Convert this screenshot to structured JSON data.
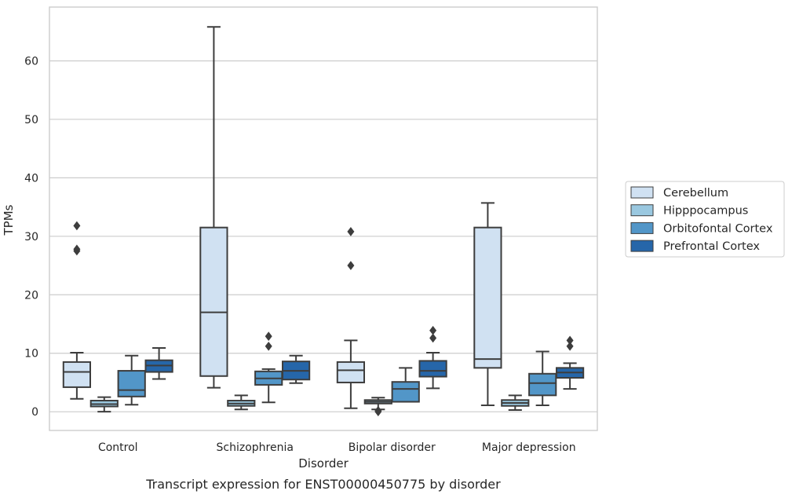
{
  "chart_data": {
    "type": "box",
    "title": "",
    "caption": "Transcript expression for ENST00000450775 by disorder",
    "xlabel": "Disorder",
    "ylabel": "TPMs",
    "ylim": [
      -3.2,
      69.2
    ],
    "yticks": [
      0,
      10,
      20,
      30,
      40,
      50,
      60
    ],
    "grid": "horizontal",
    "legend_position": "right",
    "categories": [
      "Control",
      "Schizophrenia",
      "Bipolar disorder",
      "Major depression"
    ],
    "series": [
      {
        "name": "Cerebellum",
        "color": "#d0e1f2",
        "boxes": [
          {
            "whislo": 2.2,
            "q1": 4.2,
            "med": 6.8,
            "q3": 8.5,
            "whishi": 10.1,
            "fliers": [
              27.5,
              27.8,
              31.8
            ]
          },
          {
            "whislo": 4.1,
            "q1": 6.1,
            "med": 17.0,
            "q3": 31.5,
            "whishi": 65.8,
            "fliers": []
          },
          {
            "whislo": 0.6,
            "q1": 5.0,
            "med": 7.1,
            "q3": 8.5,
            "whishi": 12.2,
            "fliers": [
              25.0,
              30.8
            ]
          },
          {
            "whislo": 1.1,
            "q1": 7.5,
            "med": 9.0,
            "q3": 31.5,
            "whishi": 35.7,
            "fliers": []
          }
        ]
      },
      {
        "name": "Hipppocampus",
        "color": "#9ac8e0",
        "boxes": [
          {
            "whislo": 0.0,
            "q1": 0.9,
            "med": 1.3,
            "q3": 1.9,
            "whishi": 2.5,
            "fliers": []
          },
          {
            "whislo": 0.4,
            "q1": 1.0,
            "med": 1.4,
            "q3": 1.9,
            "whishi": 2.8,
            "fliers": []
          },
          {
            "whislo": 0.4,
            "q1": 1.4,
            "med": 1.7,
            "q3": 2.0,
            "whishi": 2.4,
            "fliers": [
              0.0,
              0.2
            ]
          },
          {
            "whislo": 0.3,
            "q1": 1.0,
            "med": 1.5,
            "q3": 2.0,
            "whishi": 2.8,
            "fliers": []
          }
        ]
      },
      {
        "name": "Orbitofontal Cortex",
        "color": "#5296c8",
        "boxes": [
          {
            "whislo": 1.2,
            "q1": 2.6,
            "med": 3.7,
            "q3": 7.0,
            "whishi": 9.6,
            "fliers": []
          },
          {
            "whislo": 1.6,
            "q1": 4.6,
            "med": 5.7,
            "q3": 6.9,
            "whishi": 7.3,
            "fliers": [
              11.2,
              12.9
            ]
          },
          {
            "whislo": 1.7,
            "q1": 1.7,
            "med": 3.9,
            "q3": 5.1,
            "whishi": 7.5,
            "fliers": []
          },
          {
            "whislo": 1.1,
            "q1": 2.8,
            "med": 4.9,
            "q3": 6.5,
            "whishi": 10.3,
            "fliers": []
          }
        ]
      },
      {
        "name": "Prefrontal Cortex",
        "color": "#2666a9",
        "boxes": [
          {
            "whislo": 5.6,
            "q1": 6.8,
            "med": 7.9,
            "q3": 8.8,
            "whishi": 10.9,
            "fliers": []
          },
          {
            "whislo": 4.9,
            "q1": 5.5,
            "med": 7.0,
            "q3": 8.6,
            "whishi": 9.6,
            "fliers": []
          },
          {
            "whislo": 4.0,
            "q1": 6.0,
            "med": 7.0,
            "q3": 8.7,
            "whishi": 10.1,
            "fliers": [
              12.6,
              13.9
            ]
          },
          {
            "whislo": 3.9,
            "q1": 5.8,
            "med": 6.7,
            "q3": 7.5,
            "whishi": 8.3,
            "fliers": [
              11.2,
              12.2
            ]
          }
        ]
      }
    ]
  }
}
